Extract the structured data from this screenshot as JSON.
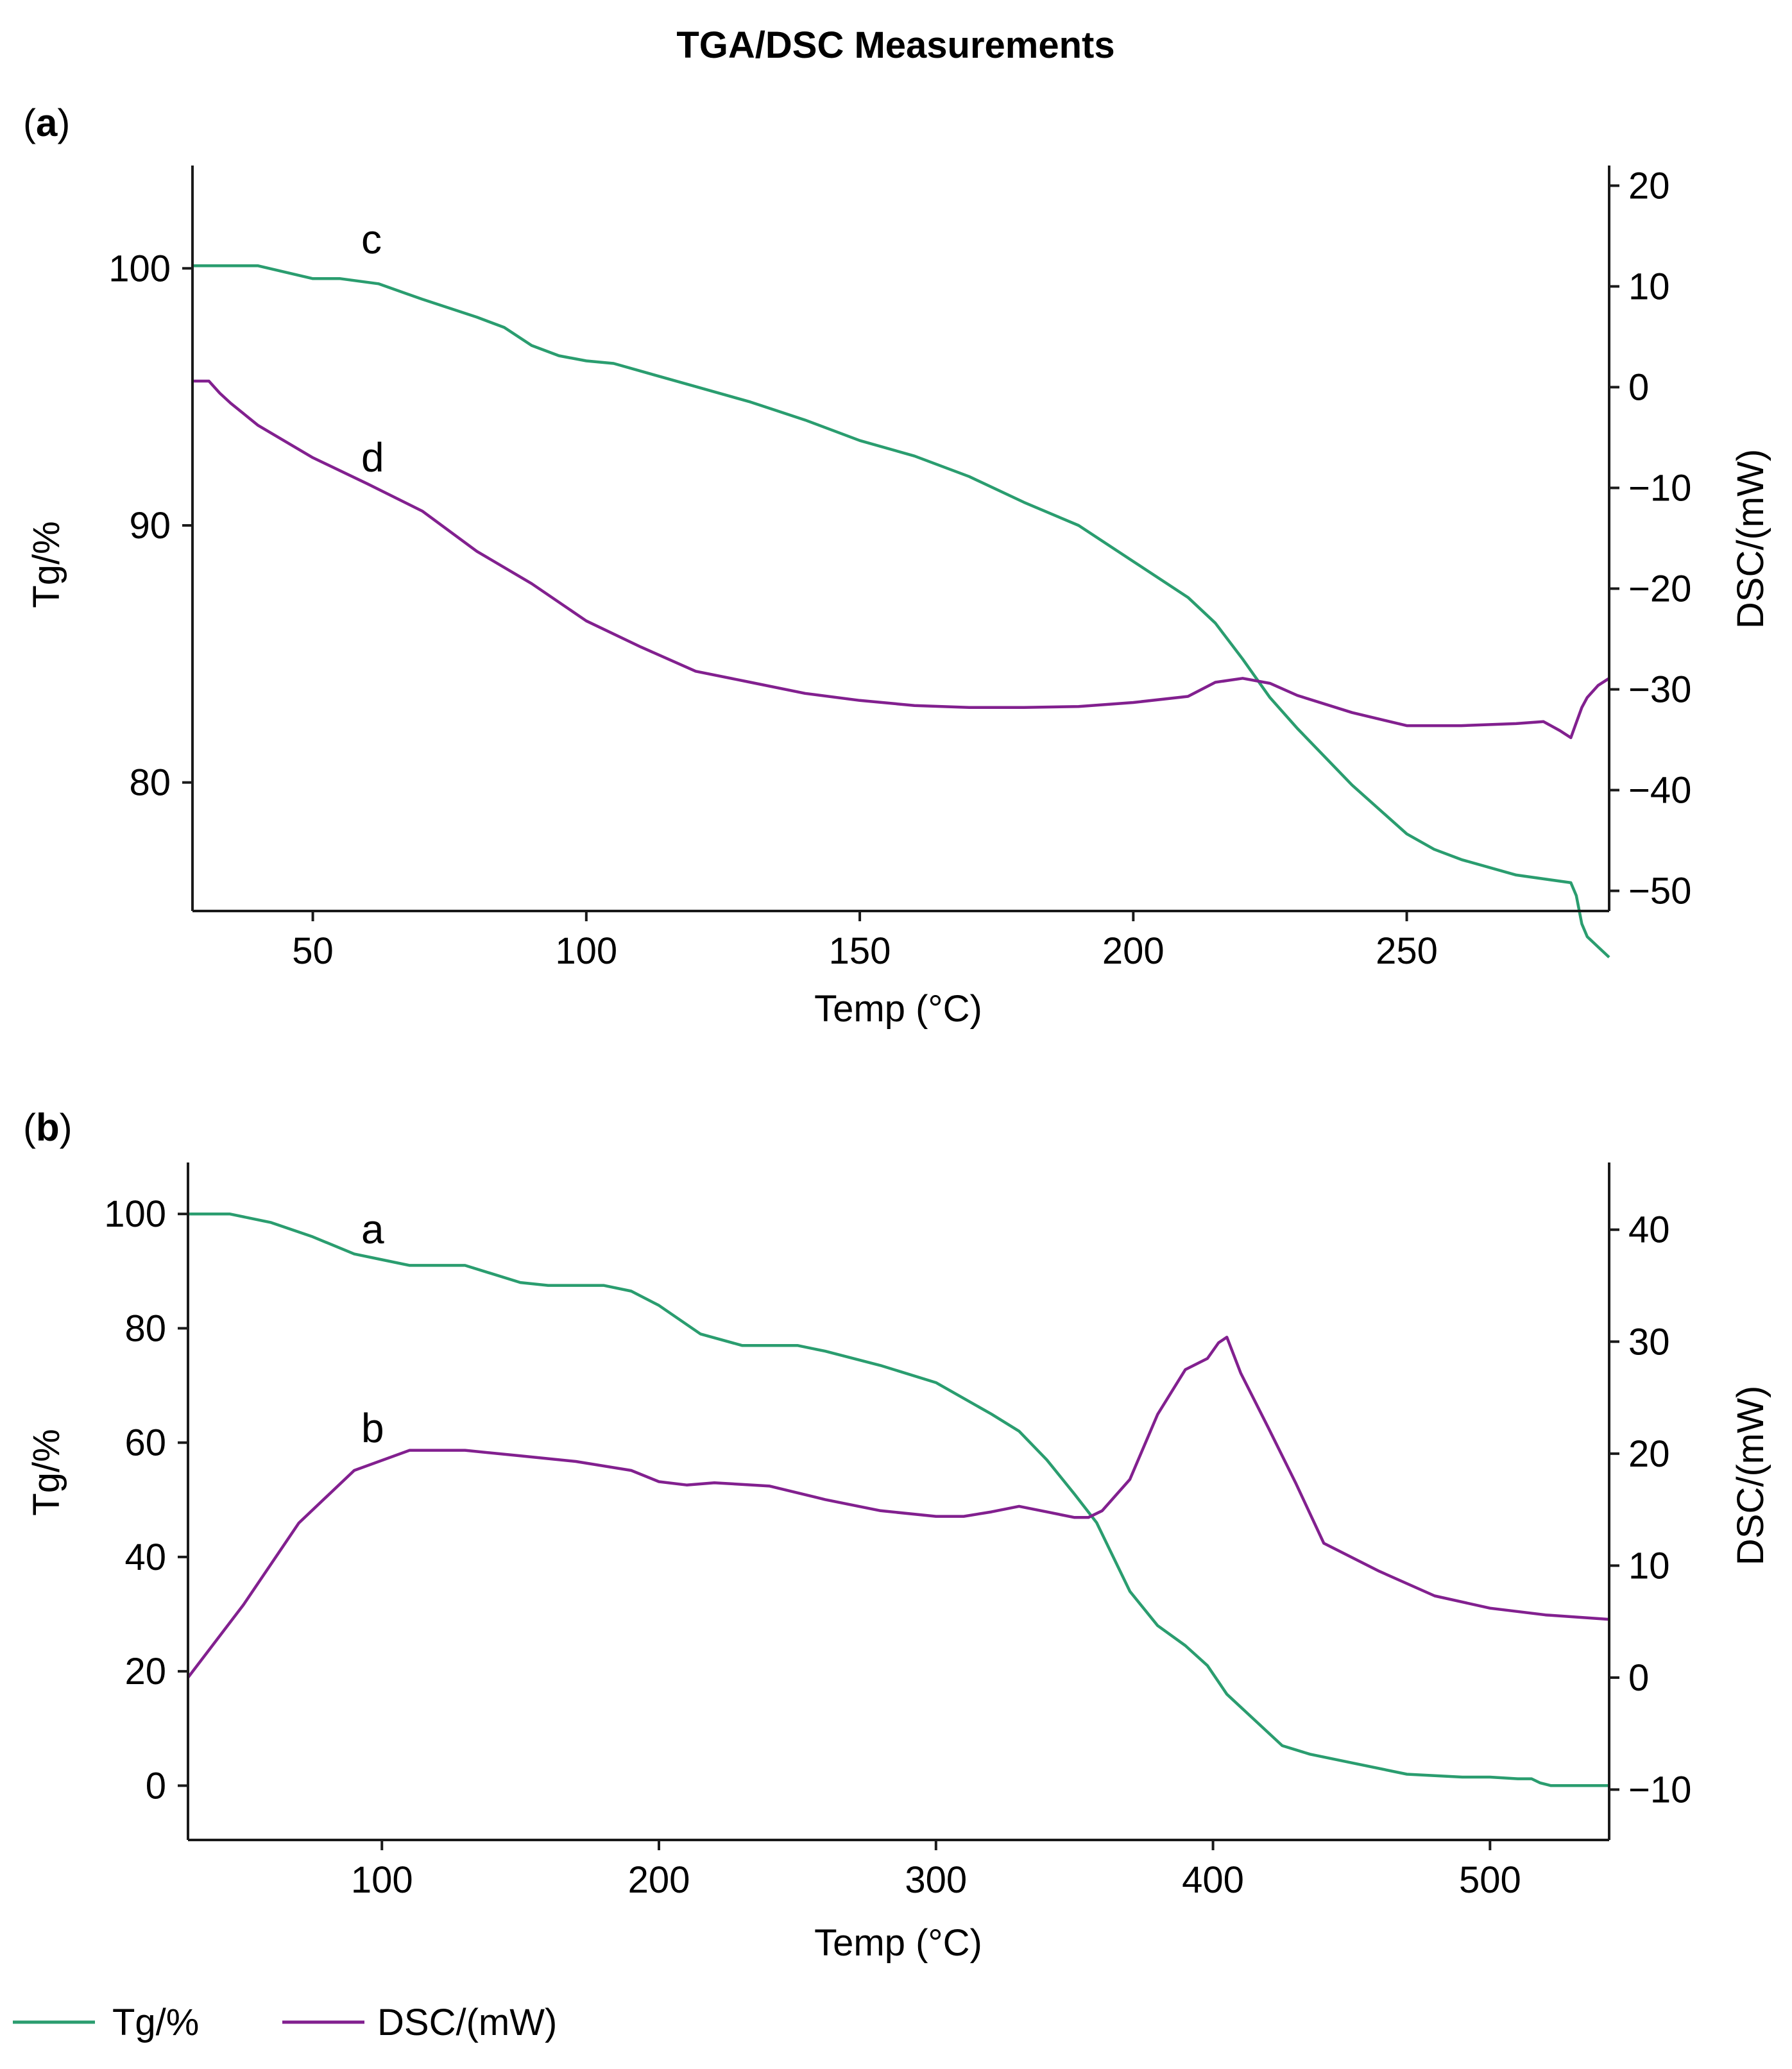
{
  "figure": {
    "title": "TGA/DSC Measurements",
    "legend": [
      {
        "label": "Tg/%",
        "color": "#2a9d6f"
      },
      {
        "label": "DSC/(mW)",
        "color": "#82208f"
      }
    ]
  },
  "colors": {
    "tg": "#2a9d6f",
    "dsc": "#82208f",
    "axis": "#1a1a1a"
  },
  "chart_data": [
    {
      "type": "line",
      "panel_label": "a",
      "xlabel": "Temp (°C)",
      "ylabel": "Tg/%",
      "y2label": "DSC/(mW)",
      "xlim": [
        28,
        287
      ],
      "ylim": [
        75,
        104
      ],
      "y2lim": [
        -52,
        22
      ],
      "xticks": [
        50,
        100,
        150,
        200,
        250
      ],
      "yticks": [
        80,
        90,
        100
      ],
      "y2ticks": [
        -50,
        -40,
        -30,
        -20,
        -10,
        0,
        10,
        20
      ],
      "grid": false,
      "annotations": [
        {
          "text": "c",
          "x": 63,
          "y": 100.6
        },
        {
          "text": "d",
          "x": 63,
          "y": 91.8
        }
      ],
      "series": [
        {
          "name": "Tg/%",
          "axis": "left",
          "x": [
            28,
            40,
            50,
            55,
            62,
            70,
            80,
            85,
            90,
            95,
            100,
            105,
            110,
            120,
            130,
            140,
            150,
            160,
            170,
            180,
            190,
            200,
            210,
            215,
            220,
            225,
            230,
            240,
            250,
            255,
            260,
            270,
            280,
            281,
            282,
            283,
            285,
            287
          ],
          "y": [
            100.1,
            100.1,
            99.6,
            99.6,
            99.4,
            98.8,
            98.1,
            97.7,
            97.0,
            96.6,
            96.4,
            96.3,
            96.0,
            95.4,
            94.8,
            94.1,
            93.3,
            92.7,
            91.9,
            90.9,
            90.0,
            88.6,
            87.2,
            86.2,
            84.8,
            83.3,
            82.1,
            79.9,
            78.0,
            77.4,
            77.0,
            76.4,
            76.1,
            75.6,
            74.5,
            74.0,
            73.6,
            73.2
          ]
        },
        {
          "name": "DSC/(mW)",
          "axis": "right",
          "x": [
            28,
            31,
            33,
            35,
            40,
            50,
            60,
            70,
            80,
            90,
            100,
            110,
            120,
            130,
            140,
            150,
            160,
            170,
            180,
            190,
            200,
            210,
            215,
            220,
            225,
            230,
            240,
            250,
            260,
            270,
            275,
            278,
            280,
            281,
            282,
            283,
            285,
            287
          ],
          "y": [
            0.6,
            0.6,
            -0.6,
            -1.6,
            -3.8,
            -7.0,
            -9.6,
            -12.3,
            -16.3,
            -19.5,
            -23.2,
            -25.8,
            -28.2,
            -29.3,
            -30.4,
            -31.1,
            -31.6,
            -31.8,
            -31.8,
            -31.7,
            -31.3,
            -30.7,
            -29.3,
            -28.9,
            -29.4,
            -30.6,
            -32.3,
            -33.6,
            -33.6,
            -33.4,
            -33.2,
            -34.1,
            -34.8,
            -33.3,
            -31.8,
            -30.8,
            -29.6,
            -28.9
          ]
        }
      ]
    },
    {
      "type": "line",
      "panel_label": "b",
      "xlabel": "Temp (°C)",
      "ylabel": "Tg/%",
      "y2label": "DSC/(mW)",
      "xlim": [
        30,
        543
      ],
      "ylim": [
        -9.5,
        109
      ],
      "y2lim": [
        -14.5,
        46
      ],
      "xticks": [
        100,
        200,
        300,
        400,
        500
      ],
      "yticks": [
        0,
        20,
        40,
        60,
        80,
        100
      ],
      "y2ticks": [
        -10,
        0,
        10,
        20,
        30,
        40
      ],
      "grid": false,
      "annotations": [
        {
          "text": "a",
          "x": 97,
          "y": 97
        },
        {
          "text": "b",
          "x": 97,
          "y": 64
        }
      ],
      "series": [
        {
          "name": "Tg/%",
          "axis": "left",
          "x": [
            30,
            45,
            60,
            75,
            90,
            100,
            110,
            130,
            150,
            160,
            180,
            190,
            200,
            215,
            230,
            250,
            260,
            280,
            300,
            320,
            330,
            340,
            350,
            358,
            363,
            370,
            380,
            390,
            398,
            405,
            415,
            425,
            435,
            450,
            470,
            490,
            500,
            510,
            515,
            518,
            522,
            530,
            543
          ],
          "y": [
            100,
            100,
            98.5,
            96,
            93,
            92,
            91,
            91,
            88,
            87.5,
            87.5,
            86.5,
            84,
            79,
            77,
            77,
            76,
            73.5,
            70.5,
            65,
            62,
            57,
            51,
            46,
            41,
            34,
            28,
            24.5,
            21,
            16,
            11.5,
            7,
            5.5,
            4,
            2,
            1.5,
            1.5,
            1.2,
            1.2,
            0.5,
            0,
            0,
            0
          ]
        },
        {
          "name": "DSC/(mW)",
          "axis": "right",
          "x": [
            30,
            50,
            70,
            90,
            110,
            130,
            150,
            170,
            190,
            200,
            210,
            220,
            240,
            260,
            280,
            300,
            310,
            320,
            330,
            340,
            350,
            355,
            360,
            370,
            380,
            390,
            398,
            402,
            405,
            410,
            420,
            430,
            440,
            460,
            480,
            500,
            520,
            543
          ],
          "y": [
            0,
            6.5,
            13.8,
            18.5,
            20.3,
            20.3,
            19.8,
            19.3,
            18.5,
            17.5,
            17.2,
            17.4,
            17.1,
            15.9,
            14.9,
            14.4,
            14.4,
            14.8,
            15.3,
            14.8,
            14.3,
            14.3,
            14.9,
            17.7,
            23.5,
            27.5,
            28.5,
            29.9,
            30.4,
            27.2,
            22.3,
            17.3,
            12,
            9.5,
            7.3,
            6.2,
            5.6,
            5.2
          ]
        }
      ]
    }
  ]
}
